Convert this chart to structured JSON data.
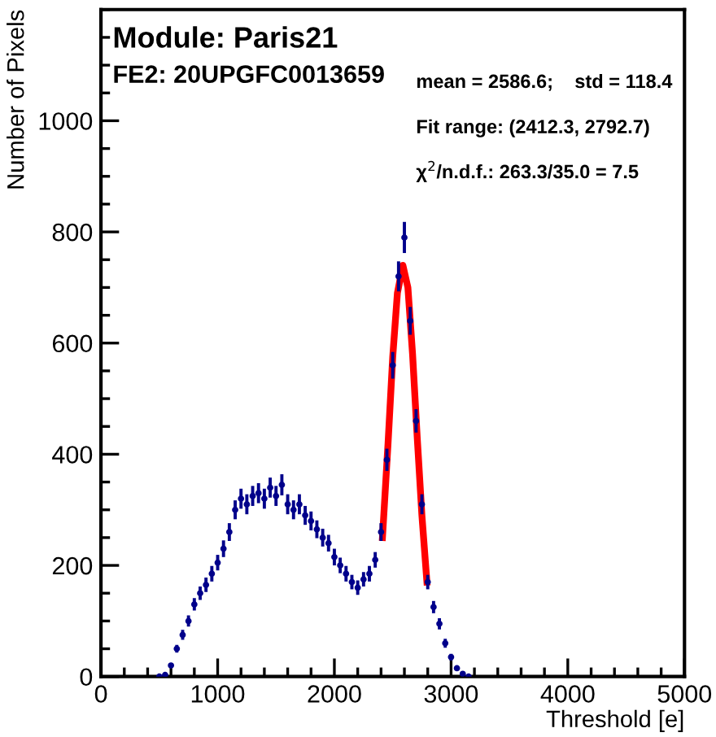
{
  "chart_data": {
    "type": "scatter",
    "title": "Module: Paris21",
    "xlabel": "Threshold [e]",
    "ylabel": "Number of Pixels",
    "annotations": [
      "FE2: 20UPGFC0013659",
      "mean = 2586.6;    std = 118.4",
      "Fit range: (2412.3, 2792.7)",
      "χ$^{2}$/n.d.f.: 263.3/35.0 = 7.5"
    ],
    "xlim": [
      0,
      5000
    ],
    "ylim": [
      0,
      1200
    ],
    "xticks": [
      0,
      1000,
      2000,
      3000,
      4000,
      5000
    ],
    "yticks": [
      0,
      200,
      400,
      600,
      800,
      1000
    ],
    "grid": false,
    "legend": false,
    "series": [
      {
        "color": "#00008b",
        "marker": "circle",
        "x": [
          500,
          550,
          600,
          650,
          700,
          750,
          800,
          850,
          900,
          950,
          1000,
          1050,
          1100,
          1150,
          1200,
          1250,
          1300,
          1350,
          1400,
          1450,
          1500,
          1550,
          1600,
          1650,
          1700,
          1750,
          1800,
          1850,
          1900,
          1950,
          2000,
          2050,
          2100,
          2150,
          2200,
          2250,
          2300,
          2350,
          2400,
          2450,
          2500,
          2550,
          2600,
          2650,
          2700,
          2750,
          2800,
          2850,
          2900,
          2950,
          3000,
          3050,
          3100,
          3150
        ],
        "values": [
          0,
          3,
          20,
          50,
          75,
          100,
          130,
          150,
          165,
          185,
          205,
          230,
          260,
          300,
          320,
          310,
          325,
          330,
          320,
          340,
          325,
          345,
          310,
          300,
          310,
          290,
          280,
          265,
          250,
          240,
          215,
          200,
          185,
          170,
          160,
          175,
          185,
          210,
          260,
          390,
          560,
          720,
          790,
          640,
          460,
          310,
          170,
          125,
          95,
          60,
          35,
          15,
          5,
          0
        ],
        "errors": [
          0,
          2,
          4,
          7,
          9,
          10,
          11,
          12,
          13,
          14,
          14,
          15,
          16,
          17,
          18,
          18,
          18,
          18,
          18,
          18,
          18,
          19,
          18,
          17,
          18,
          17,
          17,
          16,
          16,
          15,
          15,
          14,
          14,
          13,
          13,
          13,
          14,
          14,
          16,
          20,
          24,
          27,
          28,
          25,
          21,
          18,
          13,
          11,
          10,
          8,
          6,
          4,
          2,
          0
        ]
      },
      {
        "type": "line",
        "color": "#ff0000",
        "line_style": "solid",
        "marker": "none",
        "x": [
          2412,
          2460,
          2500,
          2540,
          2587,
          2630,
          2670,
          2710,
          2750,
          2793
        ],
        "values": [
          250,
          420,
          575,
          690,
          740,
          700,
          580,
          430,
          290,
          170
        ]
      }
    ]
  }
}
